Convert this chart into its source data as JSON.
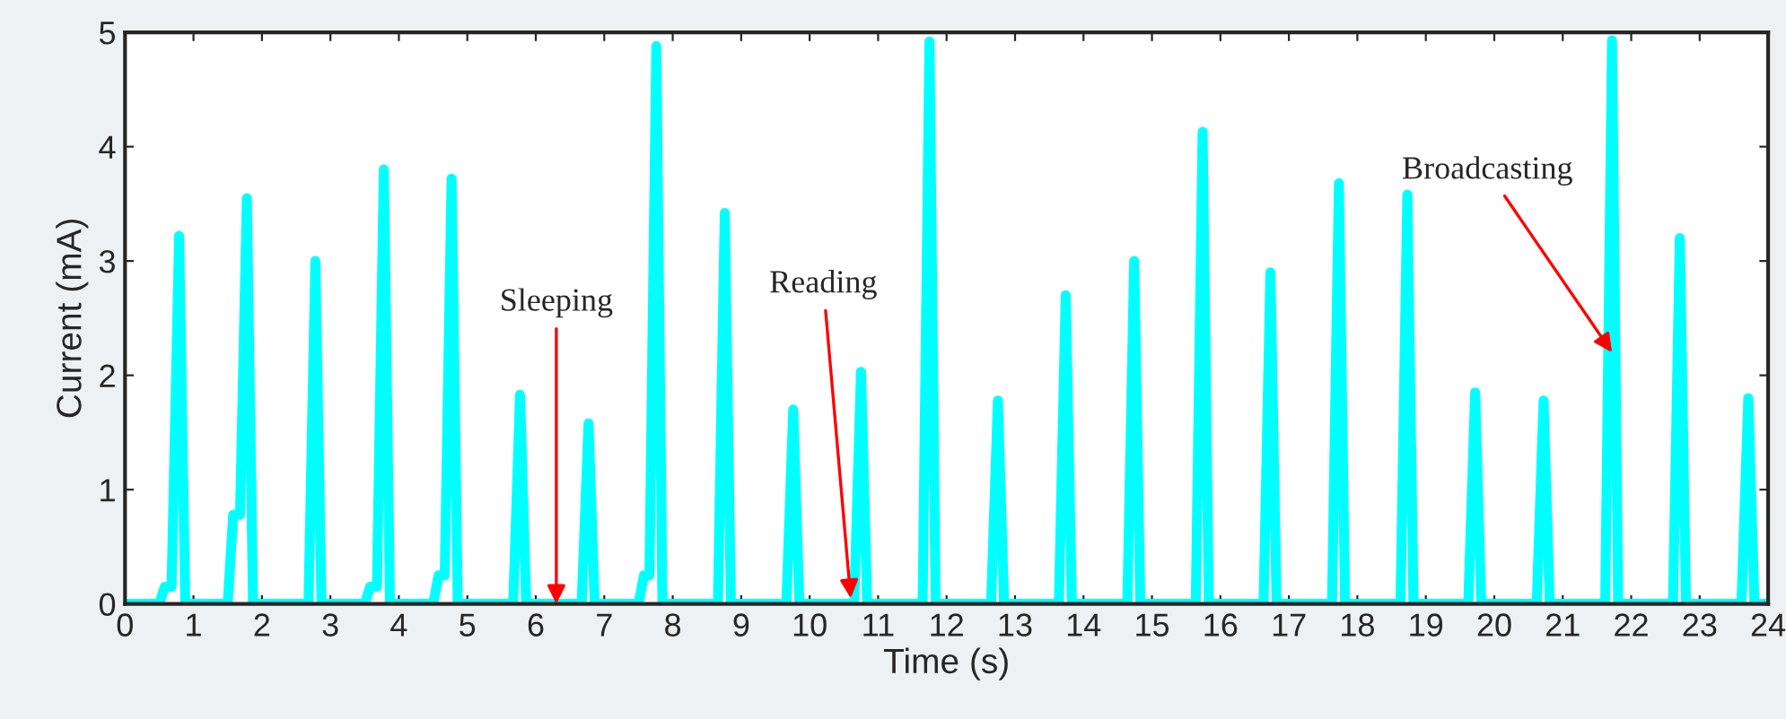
{
  "chart_data": {
    "type": "line",
    "xlabel": "Time (s)",
    "ylabel": "Current (mA)",
    "x": [
      0,
      0.5,
      0.58,
      0.68,
      0.79,
      0.88,
      1.5,
      1.58,
      1.68,
      1.78,
      1.87,
      2.68,
      2.78,
      2.87,
      3.5,
      3.58,
      3.68,
      3.78,
      3.87,
      4.5,
      4.58,
      4.67,
      4.77,
      4.86,
      5.67,
      5.77,
      5.86,
      6.67,
      6.77,
      6.86,
      7.5,
      7.58,
      7.66,
      7.76,
      7.85,
      8.66,
      8.76,
      8.85,
      9.66,
      9.76,
      9.85,
      10.65,
      10.75,
      10.84,
      11.65,
      11.75,
      11.84,
      12.65,
      12.75,
      12.84,
      13.64,
      13.74,
      13.83,
      14.64,
      14.74,
      14.83,
      15.64,
      15.74,
      15.83,
      16.63,
      16.73,
      16.82,
      17.63,
      17.73,
      17.82,
      18.63,
      18.73,
      18.82,
      19.62,
      19.72,
      19.81,
      20.62,
      20.72,
      20.81,
      21.62,
      21.72,
      21.81,
      22.61,
      22.71,
      22.8,
      23.61,
      23.71,
      23.8,
      24
    ],
    "series": [
      {
        "color": "#00ffff",
        "values": [
          0,
          0,
          0.15,
          0.15,
          3.22,
          0,
          0,
          0.78,
          0.78,
          3.55,
          0,
          0,
          3.0,
          0,
          0,
          0.15,
          0.15,
          3.8,
          0,
          0,
          0.25,
          0.25,
          3.72,
          0,
          0,
          1.83,
          0,
          0,
          1.58,
          0,
          0,
          0.25,
          0.25,
          4.88,
          0,
          0,
          3.42,
          0,
          0,
          1.7,
          0,
          0,
          2.03,
          0,
          0,
          4.92,
          0,
          0,
          1.78,
          0,
          0,
          2.7,
          0,
          0,
          3.0,
          0,
          0,
          4.13,
          0,
          0,
          2.9,
          0,
          0,
          3.68,
          0,
          0,
          3.58,
          0,
          0,
          1.85,
          0,
          0,
          1.78,
          0,
          0,
          4.93,
          0,
          0,
          3.2,
          0,
          0,
          1.8,
          0,
          0
        ]
      }
    ],
    "xlim": [
      0,
      24
    ],
    "xticks": [
      0,
      1,
      2,
      3,
      4,
      5,
      6,
      7,
      8,
      9,
      10,
      11,
      12,
      13,
      14,
      15,
      16,
      17,
      18,
      19,
      20,
      21,
      22,
      23,
      24
    ],
    "ylim": [
      0,
      5
    ],
    "yticks": [
      0,
      1,
      2,
      3,
      4,
      5
    ],
    "grid": false,
    "marker": "none",
    "line_style": "solid",
    "annotations": [
      {
        "text": "Sleeping",
        "x": 6.3,
        "y": 0
      },
      {
        "text": "Reading",
        "x": 10.6,
        "y": 0.05
      },
      {
        "text": "Broadcasting",
        "x": 21.72,
        "y": 2.2
      }
    ]
  }
}
